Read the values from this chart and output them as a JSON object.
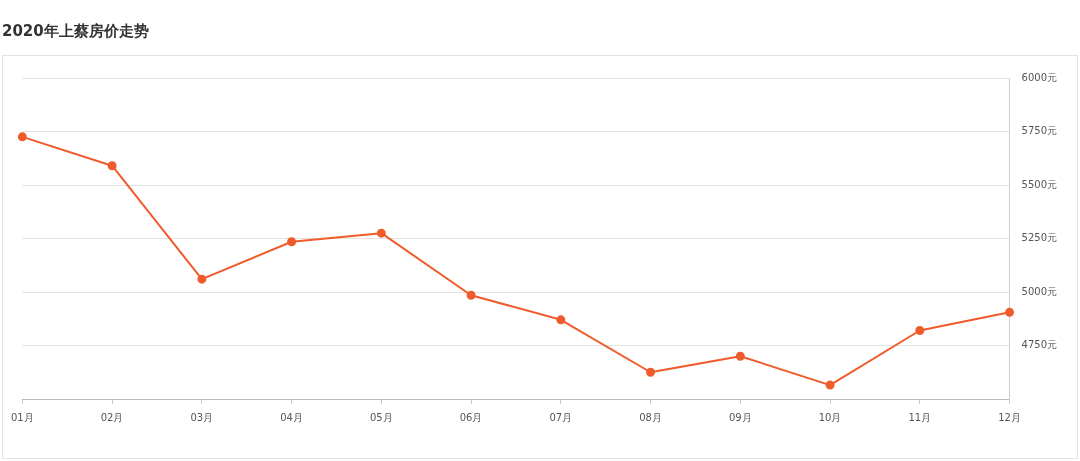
{
  "chart_data": {
    "type": "line",
    "title": "2020年上蔡房价走势",
    "categories": [
      "01月",
      "02月",
      "03月",
      "04月",
      "05月",
      "06月",
      "07月",
      "08月",
      "09月",
      "10月",
      "11月",
      "12月"
    ],
    "series": [
      {
        "color": "#ef5b2b",
        "values": [
          5725,
          5590,
          5060,
          5235,
          5275,
          4985,
          4870,
          4625,
          4700,
          4565,
          4820,
          4905
        ]
      }
    ],
    "ylim": [
      4500,
      6000
    ],
    "yticks": [
      {
        "value": 4750,
        "label": "4750元"
      },
      {
        "value": 5000,
        "label": "5000元"
      },
      {
        "value": 5250,
        "label": "5250元"
      },
      {
        "value": 5500,
        "label": "5500元"
      },
      {
        "value": 5750,
        "label": "5750元"
      },
      {
        "value": 6000,
        "label": "6000元"
      }
    ],
    "grid": "y",
    "legend": false,
    "marker": "circle",
    "line_style": "solid"
  }
}
